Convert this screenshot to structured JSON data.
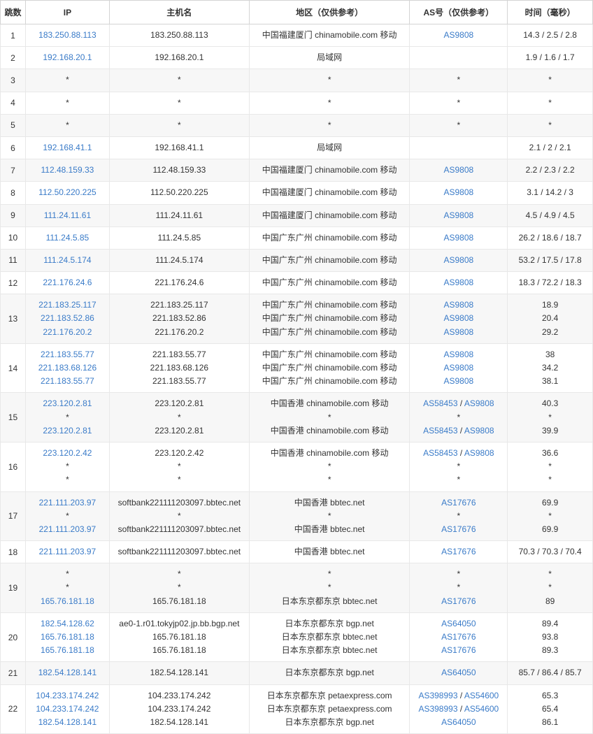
{
  "table": {
    "headers": {
      "hop": "跳数",
      "ip": "IP",
      "host": "主机名",
      "region": "地区（仅供参考）",
      "as": "AS号（仅供参考）",
      "time": "时间（毫秒）"
    },
    "rows": [
      {
        "hop": "1",
        "ip": [
          "183.250.88.113"
        ],
        "host": [
          "183.250.88.113"
        ],
        "region": [
          "中国福建厦门 chinamobile.com 移动"
        ],
        "as": [
          [
            "AS9808"
          ]
        ],
        "time": [
          "14.3 / 2.5 / 2.8"
        ],
        "alt": false
      },
      {
        "hop": "2",
        "ip": [
          "192.168.20.1"
        ],
        "host": [
          "192.168.20.1"
        ],
        "region": [
          "局域网"
        ],
        "as": [
          [
            ""
          ]
        ],
        "time": [
          "1.9 / 1.6 / 1.7"
        ],
        "alt": false
      },
      {
        "hop": "3",
        "ip": [
          "*"
        ],
        "host": [
          "*"
        ],
        "region": [
          "*"
        ],
        "as": [
          [
            "*"
          ]
        ],
        "time": [
          "*"
        ],
        "alt": true,
        "plain": true
      },
      {
        "hop": "4",
        "ip": [
          "*"
        ],
        "host": [
          "*"
        ],
        "region": [
          "*"
        ],
        "as": [
          [
            "*"
          ]
        ],
        "time": [
          "*"
        ],
        "alt": false,
        "plain": true
      },
      {
        "hop": "5",
        "ip": [
          "*"
        ],
        "host": [
          "*"
        ],
        "region": [
          "*"
        ],
        "as": [
          [
            "*"
          ]
        ],
        "time": [
          "*"
        ],
        "alt": true,
        "plain": true
      },
      {
        "hop": "6",
        "ip": [
          "192.168.41.1"
        ],
        "host": [
          "192.168.41.1"
        ],
        "region": [
          "局域网"
        ],
        "as": [
          [
            ""
          ]
        ],
        "time": [
          "2.1 / 2 / 2.1"
        ],
        "alt": false
      },
      {
        "hop": "7",
        "ip": [
          "112.48.159.33"
        ],
        "host": [
          "112.48.159.33"
        ],
        "region": [
          "中国福建厦门 chinamobile.com 移动"
        ],
        "as": [
          [
            "AS9808"
          ]
        ],
        "time": [
          "2.2 / 2.3 / 2.2"
        ],
        "alt": true
      },
      {
        "hop": "8",
        "ip": [
          "112.50.220.225"
        ],
        "host": [
          "112.50.220.225"
        ],
        "region": [
          "中国福建厦门 chinamobile.com 移动"
        ],
        "as": [
          [
            "AS9808"
          ]
        ],
        "time": [
          "3.1 / 14.2 / 3"
        ],
        "alt": false
      },
      {
        "hop": "9",
        "ip": [
          "111.24.11.61"
        ],
        "host": [
          "111.24.11.61"
        ],
        "region": [
          "中国福建厦门 chinamobile.com 移动"
        ],
        "as": [
          [
            "AS9808"
          ]
        ],
        "time": [
          "4.5 / 4.9 / 4.5"
        ],
        "alt": true
      },
      {
        "hop": "10",
        "ip": [
          "111.24.5.85"
        ],
        "host": [
          "111.24.5.85"
        ],
        "region": [
          "中国广东广州 chinamobile.com 移动"
        ],
        "as": [
          [
            "AS9808"
          ]
        ],
        "time": [
          "26.2 / 18.6 / 18.7"
        ],
        "alt": false
      },
      {
        "hop": "11",
        "ip": [
          "111.24.5.174"
        ],
        "host": [
          "111.24.5.174"
        ],
        "region": [
          "中国广东广州 chinamobile.com 移动"
        ],
        "as": [
          [
            "AS9808"
          ]
        ],
        "time": [
          "53.2 / 17.5 / 17.8"
        ],
        "alt": true
      },
      {
        "hop": "12",
        "ip": [
          "221.176.24.6"
        ],
        "host": [
          "221.176.24.6"
        ],
        "region": [
          "中国广东广州 chinamobile.com 移动"
        ],
        "as": [
          [
            "AS9808"
          ]
        ],
        "time": [
          "18.3 / 72.2 / 18.3"
        ],
        "alt": false
      },
      {
        "hop": "13",
        "ip": [
          "221.183.25.117",
          "221.183.52.86",
          "221.176.20.2"
        ],
        "host": [
          "221.183.25.117",
          "221.183.52.86",
          "221.176.20.2"
        ],
        "region": [
          "中国广东广州 chinamobile.com 移动",
          "中国广东广州 chinamobile.com 移动",
          "中国广东广州 chinamobile.com 移动"
        ],
        "as": [
          [
            "AS9808"
          ],
          [
            "AS9808"
          ],
          [
            "AS9808"
          ]
        ],
        "time": [
          "18.9",
          "20.4",
          "29.2"
        ],
        "alt": true
      },
      {
        "hop": "14",
        "ip": [
          "221.183.55.77",
          "221.183.68.126",
          "221.183.55.77"
        ],
        "host": [
          "221.183.55.77",
          "221.183.68.126",
          "221.183.55.77"
        ],
        "region": [
          "中国广东广州 chinamobile.com 移动",
          "中国广东广州 chinamobile.com 移动",
          "中国广东广州 chinamobile.com 移动"
        ],
        "as": [
          [
            "AS9808"
          ],
          [
            "AS9808"
          ],
          [
            "AS9808"
          ]
        ],
        "time": [
          "38",
          "34.2",
          "38.1"
        ],
        "alt": false
      },
      {
        "hop": "15",
        "ip": [
          "223.120.2.81",
          "*",
          "223.120.2.81"
        ],
        "host": [
          "223.120.2.81",
          "*",
          "223.120.2.81"
        ],
        "region": [
          "中国香港 chinamobile.com 移动",
          "*",
          "中国香港 chinamobile.com 移动"
        ],
        "as": [
          [
            "AS58453",
            "AS9808"
          ],
          [
            "*"
          ],
          [
            "AS58453",
            "AS9808"
          ]
        ],
        "time": [
          "40.3",
          "*",
          "39.9"
        ],
        "alt": true
      },
      {
        "hop": "16",
        "ip": [
          "223.120.2.42",
          "*",
          "*"
        ],
        "host": [
          "223.120.2.42",
          "*",
          "*"
        ],
        "region": [
          "中国香港 chinamobile.com 移动",
          "*",
          "*"
        ],
        "as": [
          [
            "AS58453",
            "AS9808"
          ],
          [
            "*"
          ],
          [
            "*"
          ]
        ],
        "time": [
          "36.6",
          "*",
          "*"
        ],
        "alt": false
      },
      {
        "hop": "17",
        "ip": [
          "221.111.203.97",
          "*",
          "221.111.203.97"
        ],
        "host": [
          "softbank221111203097.bbtec.net",
          "*",
          "softbank221111203097.bbtec.net"
        ],
        "region": [
          "中国香港 bbtec.net",
          "*",
          "中国香港 bbtec.net"
        ],
        "as": [
          [
            "AS17676"
          ],
          [
            "*"
          ],
          [
            "AS17676"
          ]
        ],
        "time": [
          "69.9",
          "*",
          "69.9"
        ],
        "alt": true
      },
      {
        "hop": "18",
        "ip": [
          "221.111.203.97"
        ],
        "host": [
          "softbank221111203097.bbtec.net"
        ],
        "region": [
          "中国香港 bbtec.net"
        ],
        "as": [
          [
            "AS17676"
          ]
        ],
        "time": [
          "70.3 / 70.3 / 70.4"
        ],
        "alt": false
      },
      {
        "hop": "19",
        "ip": [
          "*",
          "*",
          "165.76.181.18"
        ],
        "host": [
          "*",
          "*",
          "165.76.181.18"
        ],
        "region": [
          "*",
          "*",
          "日本东京都东京 bbtec.net"
        ],
        "as": [
          [
            "*"
          ],
          [
            "*"
          ],
          [
            "AS17676"
          ]
        ],
        "time": [
          "*",
          "*",
          "89"
        ],
        "alt": true
      },
      {
        "hop": "20",
        "ip": [
          "182.54.128.62",
          "165.76.181.18",
          "165.76.181.18"
        ],
        "host": [
          "ae0-1.r01.tokyjp02.jp.bb.bgp.net",
          "165.76.181.18",
          "165.76.181.18"
        ],
        "region": [
          "日本东京都东京 bgp.net",
          "日本东京都东京 bbtec.net",
          "日本东京都东京 bbtec.net"
        ],
        "as": [
          [
            "AS64050"
          ],
          [
            "AS17676"
          ],
          [
            "AS17676"
          ]
        ],
        "time": [
          "89.4",
          "93.8",
          "89.3"
        ],
        "alt": false
      },
      {
        "hop": "21",
        "ip": [
          "182.54.128.141"
        ],
        "host": [
          "182.54.128.141"
        ],
        "region": [
          "日本东京都东京 bgp.net"
        ],
        "as": [
          [
            "AS64050"
          ]
        ],
        "time": [
          "85.7 / 86.4 / 85.7"
        ],
        "alt": true
      },
      {
        "hop": "22",
        "ip": [
          "104.233.174.242",
          "104.233.174.242",
          "182.54.128.141"
        ],
        "host": [
          "104.233.174.242",
          "104.233.174.242",
          "182.54.128.141"
        ],
        "region": [
          "日本东京都东京 petaexpress.com",
          "日本东京都东京 petaexpress.com",
          "日本东京都东京 bgp.net"
        ],
        "as": [
          [
            "AS398993",
            "AS54600"
          ],
          [
            "AS398993",
            "AS54600"
          ],
          [
            "AS64050"
          ]
        ],
        "time": [
          "65.3",
          "65.4",
          "86.1"
        ],
        "alt": false
      }
    ]
  }
}
